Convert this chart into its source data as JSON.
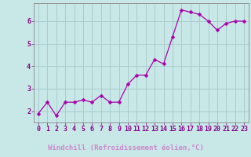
{
  "x": [
    0,
    1,
    2,
    3,
    4,
    5,
    6,
    7,
    8,
    9,
    10,
    11,
    12,
    13,
    14,
    15,
    16,
    17,
    18,
    19,
    20,
    21,
    22,
    23
  ],
  "y": [
    1.9,
    2.4,
    1.8,
    2.4,
    2.4,
    2.5,
    2.4,
    2.7,
    2.4,
    2.4,
    3.2,
    3.6,
    3.6,
    4.3,
    4.1,
    5.3,
    6.5,
    6.4,
    6.3,
    6.0,
    5.6,
    5.9,
    6.0,
    6.0
  ],
  "line_color": "#aa00aa",
  "marker": "D",
  "marker_size": 2.5,
  "background_color": "#c8e8e8",
  "plot_bg_color": "#c8e8e8",
  "grid_color": "#aacccc",
  "xlabel": "Windchill (Refroidissement éolien,°C)",
  "xlim": [
    -0.5,
    23.5
  ],
  "ylim": [
    1.5,
    6.8
  ],
  "yticks": [
    2,
    3,
    4,
    5,
    6
  ],
  "xticks": [
    0,
    1,
    2,
    3,
    4,
    5,
    6,
    7,
    8,
    9,
    10,
    11,
    12,
    13,
    14,
    15,
    16,
    17,
    18,
    19,
    20,
    21,
    22,
    23
  ],
  "tick_color": "#880088",
  "label_color": "#880088",
  "axis_bar_color": "#330033",
  "label_fontsize": 6.5,
  "tick_fontsize": 6.0,
  "spine_color": "#888888"
}
